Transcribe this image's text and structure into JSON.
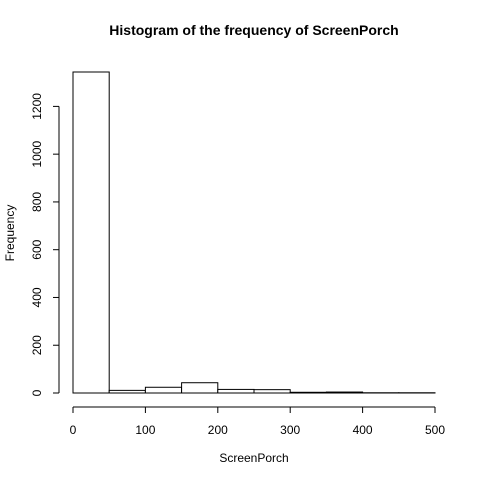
{
  "chart_data": {
    "type": "bar",
    "title": "Histogram of the frequency of ScreenPorch",
    "xlabel": "ScreenPorch",
    "ylabel": "Frequency",
    "bins": [
      {
        "from": 0,
        "to": 50,
        "count": 1344
      },
      {
        "from": 50,
        "to": 100,
        "count": 11
      },
      {
        "from": 100,
        "to": 150,
        "count": 24
      },
      {
        "from": 150,
        "to": 200,
        "count": 43
      },
      {
        "from": 200,
        "to": 250,
        "count": 15
      },
      {
        "from": 250,
        "to": 300,
        "count": 14
      },
      {
        "from": 300,
        "to": 350,
        "count": 3
      },
      {
        "from": 350,
        "to": 400,
        "count": 4
      },
      {
        "from": 400,
        "to": 450,
        "count": 1
      },
      {
        "from": 450,
        "to": 500,
        "count": 1
      }
    ],
    "xlim": [
      0,
      500
    ],
    "ylim": [
      0,
      1344
    ],
    "xticks": [
      0,
      100,
      200,
      300,
      400,
      500
    ],
    "yticks": [
      0,
      200,
      400,
      600,
      800,
      1000,
      1200
    ],
    "grid": false,
    "legend": "none"
  }
}
